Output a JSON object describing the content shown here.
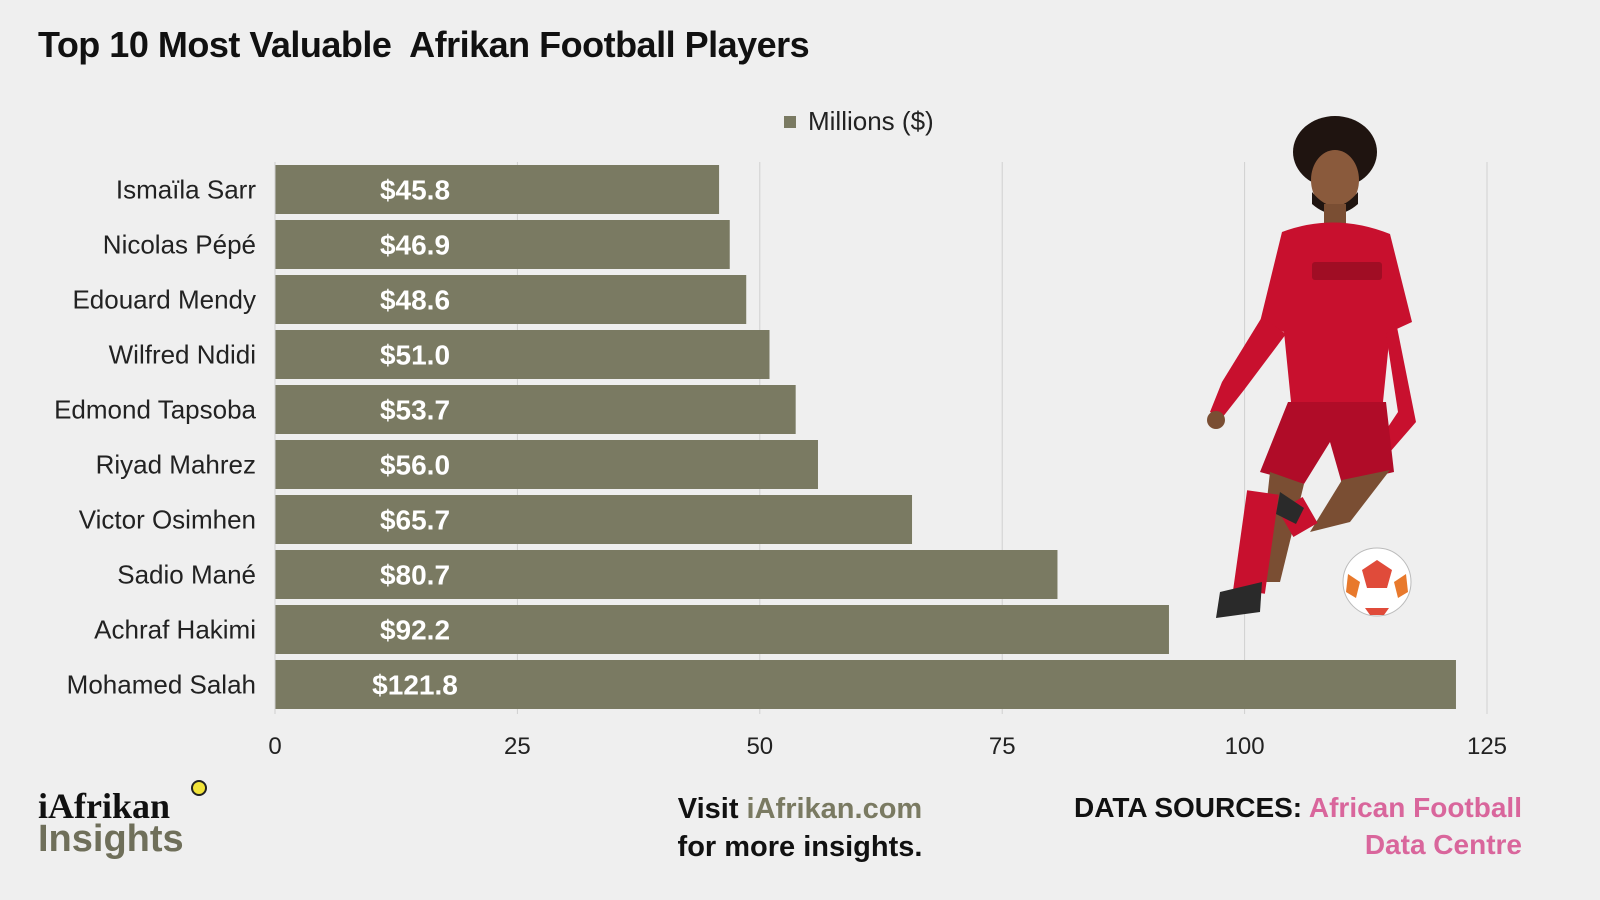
{
  "title": "Top 10 Most Valuable  Afrikan Football Players",
  "chart_data": {
    "type": "bar",
    "orientation": "horizontal",
    "categories": [
      "Ismaïla Sarr",
      "Nicolas Pépé",
      "Edouard Mendy",
      "Wilfred Ndidi",
      "Edmond Tapsoba",
      "Riyad Mahrez",
      "Victor Osimhen",
      "Sadio Mané",
      "Achraf Hakimi",
      "Mohamed Salah"
    ],
    "series": [
      {
        "name": "Millions ($)",
        "values": [
          45.8,
          46.9,
          48.6,
          51.0,
          53.7,
          56.0,
          65.7,
          80.7,
          92.2,
          121.8
        ],
        "labels": [
          "$45.8",
          "$46.9",
          "$48.6",
          "$51.0",
          "$53.7",
          "$56.0",
          "$65.7",
          "$80.7",
          "$92.2",
          "$121.8"
        ],
        "color": "#7a7a62"
      }
    ],
    "xlim": [
      0,
      125
    ],
    "xticks": [
      "0",
      "25",
      "50",
      "75",
      "100",
      "125"
    ],
    "grid": "vertical",
    "legend_position": "top"
  },
  "footer": {
    "brand_top": "iAfrikan",
    "brand_bottom": "Insights",
    "visit_prefix": "Visit ",
    "visit_link": "iAfrikan.com",
    "visit_suffix": "for more insights.",
    "sources_label": "DATA SOURCES: ",
    "sources_value_1": "African Football",
    "sources_value_2": "Data Centre"
  },
  "colors": {
    "bar": "#7a7a62",
    "background": "#efefef",
    "accent_pink": "#d9669c",
    "player_red": "#c8102e"
  }
}
